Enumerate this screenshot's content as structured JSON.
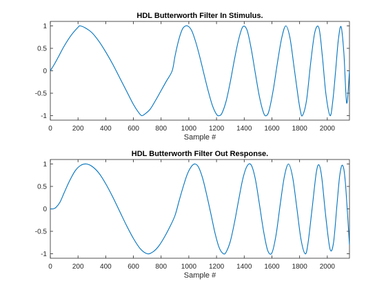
{
  "chart_data": [
    {
      "type": "line",
      "title": "HDL Butterworth Filter In Stimulus.",
      "xlabel": "Sample #",
      "ylabel": "",
      "xlim": [
        0,
        2160
      ],
      "ylim": [
        -1.1,
        1.1
      ],
      "xticks": [
        0,
        200,
        400,
        600,
        800,
        1000,
        1200,
        1400,
        1600,
        1800,
        2000
      ],
      "yticks": [
        -1,
        -0.5,
        0,
        0.5,
        1
      ],
      "xtick_labels": [
        "0",
        "200",
        "400",
        "600",
        "800",
        "1000",
        "1200",
        "1400",
        "1600",
        "1800",
        "2000"
      ],
      "ytick_labels": [
        "-1",
        "-0.5",
        "0",
        "0.5",
        "1"
      ],
      "grid": false,
      "color": "#0072BD",
      "series": [
        {
          "x": [
            0,
            30,
            60,
            100,
            150,
            200,
            215,
            250,
            300,
            350,
            400,
            450,
            500,
            550,
            600,
            640,
            660,
            680,
            720,
            760,
            800,
            840,
            880,
            900,
            920,
            940,
            960,
            990,
            1020,
            1050,
            1080,
            1110,
            1140,
            1170,
            1200,
            1220,
            1240,
            1270,
            1300,
            1330,
            1360,
            1390,
            1420,
            1450,
            1480,
            1510,
            1540,
            1560,
            1580,
            1610,
            1640,
            1670,
            1700,
            1730,
            1760,
            1790,
            1805,
            1820,
            1850,
            1880,
            1910,
            1940,
            1965,
            1990,
            2020,
            2040,
            2060,
            2080,
            2100,
            2120,
            2140,
            2160
          ],
          "y": [
            0,
            0.15,
            0.32,
            0.55,
            0.79,
            0.97,
            1.0,
            0.96,
            0.85,
            0.66,
            0.42,
            0.15,
            -0.15,
            -0.45,
            -0.75,
            -0.94,
            -1.0,
            -0.97,
            -0.86,
            -0.66,
            -0.44,
            -0.22,
            0.0,
            0.32,
            0.6,
            0.82,
            0.96,
            1.0,
            0.9,
            0.64,
            0.3,
            -0.08,
            -0.45,
            -0.77,
            -0.97,
            -1.0,
            -0.94,
            -0.67,
            -0.24,
            0.26,
            0.7,
            0.98,
            0.91,
            0.5,
            -0.05,
            -0.58,
            -0.94,
            -1.0,
            -0.88,
            -0.42,
            0.18,
            0.72,
            1.0,
            0.74,
            0.08,
            -0.6,
            -0.88,
            -1.0,
            -0.66,
            0.18,
            0.86,
            0.95,
            0.3,
            -0.52,
            -1.0,
            -0.66,
            0.0,
            0.7,
            0.98,
            0.38,
            -0.72,
            0.0
          ]
        }
      ]
    },
    {
      "type": "line",
      "title": "HDL Butterworth Filter Out Response.",
      "xlabel": "Sample #",
      "ylabel": "",
      "xlim": [
        0,
        2160
      ],
      "ylim": [
        -1.1,
        1.1
      ],
      "xticks": [
        0,
        200,
        400,
        600,
        800,
        1000,
        1200,
        1400,
        1600,
        1800,
        2000
      ],
      "yticks": [
        -1,
        -0.5,
        0,
        0.5,
        1
      ],
      "xtick_labels": [
        "0",
        "200",
        "400",
        "600",
        "800",
        "1000",
        "1200",
        "1400",
        "1600",
        "1800",
        "2000"
      ],
      "ytick_labels": [
        "-1",
        "-0.5",
        "0",
        "0.5",
        "1"
      ],
      "grid": false,
      "color": "#0072BD",
      "series": [
        {
          "x": [
            0,
            20,
            40,
            70,
            100,
            140,
            180,
            220,
            260,
            300,
            350,
            400,
            450,
            500,
            550,
            600,
            650,
            700,
            740,
            780,
            820,
            860,
            900,
            930,
            960,
            990,
            1020,
            1045,
            1070,
            1100,
            1130,
            1160,
            1190,
            1220,
            1250,
            1270,
            1300,
            1330,
            1360,
            1390,
            1420,
            1450,
            1480,
            1510,
            1540,
            1570,
            1600,
            1630,
            1660,
            1690,
            1720,
            1750,
            1780,
            1810,
            1840,
            1860,
            1890,
            1920,
            1940,
            1960,
            1990,
            2020,
            2045,
            2070,
            2090,
            2110,
            2130,
            2160
          ],
          "y": [
            0,
            0.0,
            0.03,
            0.15,
            0.36,
            0.63,
            0.85,
            0.97,
            1.0,
            0.95,
            0.8,
            0.56,
            0.27,
            -0.05,
            -0.37,
            -0.66,
            -0.89,
            -1.0,
            -0.96,
            -0.84,
            -0.65,
            -0.42,
            -0.15,
            0.18,
            0.5,
            0.78,
            0.95,
            1.0,
            0.93,
            0.68,
            0.3,
            -0.12,
            -0.55,
            -0.87,
            -1.0,
            -0.96,
            -0.72,
            -0.3,
            0.2,
            0.67,
            0.95,
            0.98,
            0.67,
            0.1,
            -0.5,
            -0.93,
            -0.98,
            -0.58,
            0.1,
            0.72,
            1.0,
            0.7,
            0.02,
            -0.68,
            -1.0,
            -0.78,
            0.0,
            0.8,
            0.98,
            0.7,
            -0.2,
            -0.9,
            -0.75,
            0.1,
            0.75,
            0.97,
            0.6,
            -0.8
          ]
        }
      ]
    }
  ]
}
